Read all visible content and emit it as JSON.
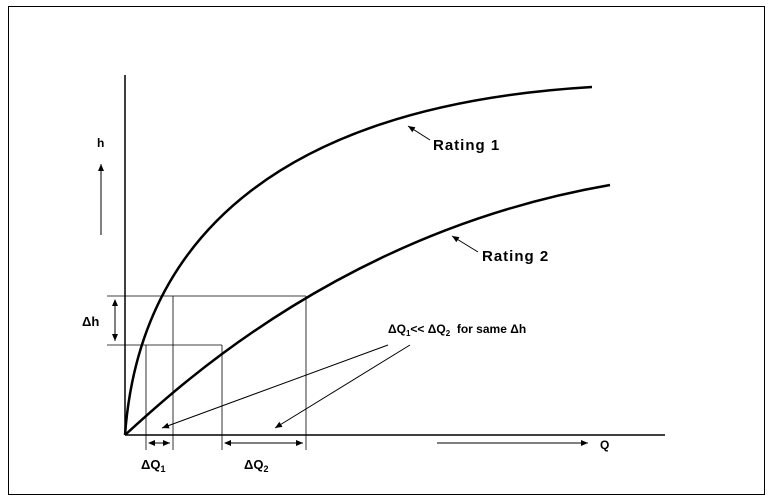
{
  "axes": {
    "y_label": "h",
    "x_label": "Q"
  },
  "curves": {
    "rating1_label": "Rating 1",
    "rating2_label": "Rating 2"
  },
  "annotations": {
    "delta_h": "Δh",
    "dq1": "ΔQ",
    "dq1_sub": "1",
    "dq2": "ΔQ",
    "dq2_sub": "2",
    "comparison_a": "ΔQ",
    "comparison_sub1": "1",
    "comparison_b": "<< ΔQ",
    "comparison_sub2": "2",
    "comparison_c": "  for same Δh"
  },
  "colors": {
    "ink": "#000000",
    "background": "#ffffff"
  }
}
